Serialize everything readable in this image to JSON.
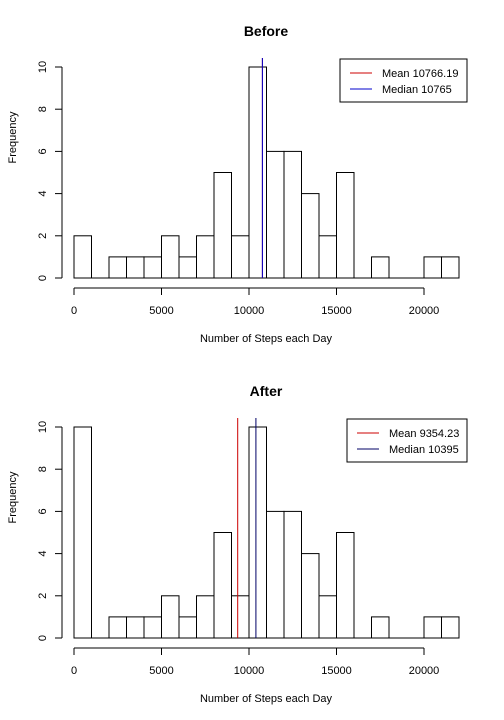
{
  "chart_data": [
    {
      "type": "bar",
      "title": "Before",
      "xlabel": "Number of Steps each Day",
      "ylabel": "Frequency",
      "bin_width": 1000,
      "xlim": [
        0,
        22000
      ],
      "ylim": [
        0,
        10
      ],
      "x_ticks": [
        "0",
        "5000",
        "10000",
        "15000",
        "20000"
      ],
      "x_tick_values": [
        0,
        5000,
        10000,
        15000,
        20000
      ],
      "y_ticks": [
        "0",
        "2",
        "4",
        "6",
        "8",
        "10"
      ],
      "y_tick_values": [
        0,
        2,
        4,
        6,
        8,
        10
      ],
      "bin_starts": [
        0,
        1000,
        2000,
        3000,
        4000,
        5000,
        6000,
        7000,
        8000,
        9000,
        10000,
        11000,
        12000,
        13000,
        14000,
        15000,
        16000,
        17000,
        18000,
        19000,
        20000,
        21000
      ],
      "values": [
        2,
        0,
        1,
        1,
        1,
        2,
        1,
        2,
        5,
        2,
        10,
        6,
        6,
        4,
        2,
        5,
        0,
        1,
        0,
        0,
        1,
        1
      ],
      "mean": 10766.19,
      "median": 10765,
      "legend": [
        {
          "label": "Mean 10766.19",
          "color": "#cc0000"
        },
        {
          "label": "Median 10765",
          "color": "#0000cc"
        }
      ],
      "legend_position": "top-right"
    },
    {
      "type": "bar",
      "title": "After",
      "xlabel": "Number of Steps each Day",
      "ylabel": "Frequency",
      "bin_width": 1000,
      "xlim": [
        0,
        22000
      ],
      "ylim": [
        0,
        10
      ],
      "x_ticks": [
        "0",
        "5000",
        "10000",
        "15000",
        "20000"
      ],
      "x_tick_values": [
        0,
        5000,
        10000,
        15000,
        20000
      ],
      "y_ticks": [
        "0",
        "2",
        "4",
        "6",
        "8",
        "10"
      ],
      "y_tick_values": [
        0,
        2,
        4,
        6,
        8,
        10
      ],
      "bin_starts": [
        0,
        1000,
        2000,
        3000,
        4000,
        5000,
        6000,
        7000,
        8000,
        9000,
        10000,
        11000,
        12000,
        13000,
        14000,
        15000,
        16000,
        17000,
        18000,
        19000,
        20000,
        21000
      ],
      "values": [
        10,
        0,
        1,
        1,
        1,
        2,
        1,
        2,
        5,
        2,
        10,
        6,
        6,
        4,
        2,
        5,
        0,
        1,
        0,
        0,
        1,
        1
      ],
      "mean": 9354.23,
      "median": 10395,
      "legend": [
        {
          "label": "Mean 9354.23",
          "color": "#cc0000"
        },
        {
          "label": "Median 10395",
          "color": "#000066"
        }
      ],
      "legend_position": "top-right"
    }
  ]
}
